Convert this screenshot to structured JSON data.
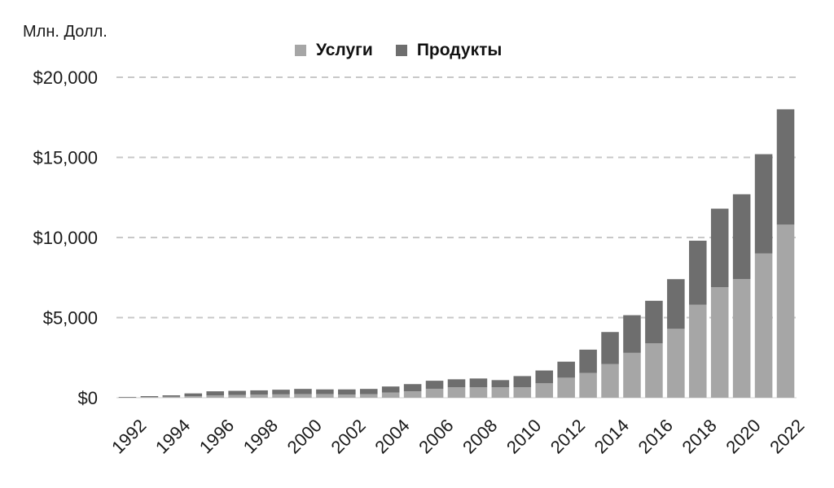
{
  "chart_data": {
    "type": "bar",
    "stacked": true,
    "unit_label": "Млн. Долл.",
    "xlabel": "",
    "ylabel": "",
    "ylim": [
      0,
      20000
    ],
    "yticks": [
      {
        "value": 0,
        "label": "$0"
      },
      {
        "value": 5000,
        "label": "$5,000"
      },
      {
        "value": 10000,
        "label": "$10,000"
      },
      {
        "value": 15000,
        "label": "$15,000"
      },
      {
        "value": 20000,
        "label": "$20,000"
      }
    ],
    "grid": true,
    "legend_position": "top",
    "categories": [
      "1992",
      "1993",
      "1994",
      "1995",
      "1996",
      "1997",
      "1998",
      "1999",
      "2000",
      "2001",
      "2002",
      "2003",
      "2004",
      "2005",
      "2006",
      "2007",
      "2008",
      "2009",
      "2010",
      "2011",
      "2012",
      "2013",
      "2014",
      "2015",
      "2016",
      "2017",
      "2018",
      "2019",
      "2020",
      "2021",
      "2022"
    ],
    "xtick_labels": [
      "1992",
      "1994",
      "1996",
      "1998",
      "2000",
      "2002",
      "2004",
      "2006",
      "2008",
      "2010",
      "2012",
      "2014",
      "2016",
      "2018",
      "2020",
      "2022"
    ],
    "series": [
      {
        "name": "Услуги",
        "color": "#a6a6a6",
        "values": [
          20,
          40,
          60,
          100,
          150,
          170,
          190,
          210,
          230,
          230,
          200,
          220,
          330,
          400,
          560,
          650,
          650,
          650,
          650,
          900,
          1250,
          1550,
          2100,
          2800,
          3400,
          4300,
          5800,
          6900,
          7400,
          9000,
          10800
        ]
      },
      {
        "name": "Продукты",
        "color": "#6e6e6e",
        "values": [
          30,
          60,
          90,
          170,
          250,
          260,
          270,
          290,
          320,
          290,
          320,
          330,
          370,
          450,
          500,
          500,
          550,
          450,
          700,
          800,
          1000,
          1450,
          2000,
          2350,
          2650,
          3100,
          4000,
          4900,
          5300,
          6200,
          7200
        ]
      }
    ]
  }
}
